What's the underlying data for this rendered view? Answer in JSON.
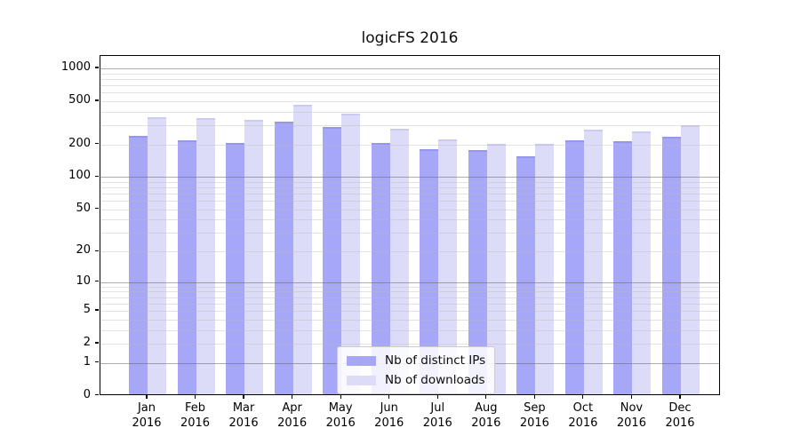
{
  "chart_data": {
    "type": "bar",
    "title": "logicFS 2016",
    "categories": [
      "Jan",
      "Feb",
      "Mar",
      "Apr",
      "May",
      "Jun",
      "Jul",
      "Aug",
      "Sep",
      "Oct",
      "Nov",
      "Dec"
    ],
    "x_year_label": "2016",
    "series": [
      {
        "name": "Nb of distinct IPs",
        "color": "#a7a7f7",
        "edge_color": "#9696ee",
        "values": [
          230,
          210,
          200,
          310,
          280,
          200,
          175,
          170,
          150,
          210,
          205,
          225
        ]
      },
      {
        "name": "Nb of downloads",
        "color": "#dcdcf8",
        "edge_color": "#cbcbf2",
        "values": [
          340,
          335,
          325,
          450,
          370,
          270,
          215,
          195,
          195,
          265,
          255,
          290
        ]
      }
    ],
    "yscale": "log1p",
    "ylim": [
      0,
      1300
    ],
    "ytick_values": [
      1000,
      500,
      200,
      100,
      50,
      20,
      10,
      5,
      2,
      1,
      0
    ],
    "ytick_labels": [
      "1000",
      "500",
      "200",
      "100",
      "50",
      "20",
      "10",
      "5",
      "2",
      "1",
      "0"
    ],
    "grid": true,
    "legend_position": "lower center"
  },
  "colors": {
    "bar_distinct_ips": "#a7a7f7",
    "bar_downloads": "#dcdcf8",
    "grid_major": "#696969",
    "grid_minor": "#b9b9b9",
    "axis": "#000000",
    "background": "#ffffff"
  }
}
